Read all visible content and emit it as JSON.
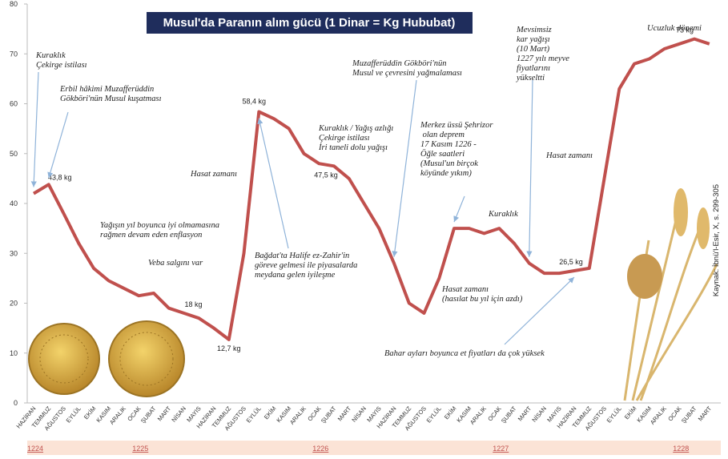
{
  "chart_data": {
    "type": "line",
    "title": "Musul'da Paranın alım gücü (1 Dinar = Kg Hububat)",
    "source": "Kaynak: İbnü'l-Esir, X, s. 299-305",
    "categories": [
      "HAZİRAN",
      "TEMMUZ",
      "AĞUSTOS",
      "EYLÜL",
      "EKİM",
      "KASIM",
      "ARALIK",
      "OCAK",
      "ŞUBAT",
      "MART",
      "NİSAN",
      "MAYIS",
      "HAZİRAN",
      "TEMMUZ",
      "AĞUSTOS",
      "EYLÜL",
      "EKİM",
      "KASIM",
      "ARALIK",
      "OCAK",
      "ŞUBAT",
      "MART",
      "NİSAN",
      "MAYIS",
      "HAZİRAN",
      "TEMMUZ",
      "AĞUSTOS",
      "EYLÜL",
      "EKİM",
      "KASIM",
      "ARALIK",
      "OCAK",
      "ŞUBAT",
      "MART",
      "NİSAN",
      "MAYIS",
      "HAZİRAN",
      "TEMMUZ",
      "AĞUSTOS",
      "EYLÜL",
      "EKİM",
      "KASIM",
      "ARALIK",
      "OCAK",
      "ŞUBAT",
      "MART"
    ],
    "years": [
      "1224",
      null,
      null,
      null,
      null,
      null,
      null,
      "1225",
      null,
      null,
      null,
      null,
      null,
      null,
      null,
      null,
      null,
      null,
      null,
      "1226",
      null,
      null,
      null,
      null,
      null,
      null,
      null,
      null,
      null,
      null,
      null,
      "1227",
      null,
      null,
      null,
      null,
      null,
      null,
      null,
      null,
      null,
      null,
      null,
      "1228",
      null,
      null
    ],
    "values": [
      42,
      43.8,
      38,
      32,
      27,
      24.5,
      23,
      21.5,
      22,
      19,
      18,
      17,
      15,
      12.7,
      30,
      58.4,
      57,
      55,
      50,
      48,
      47.5,
      45,
      40,
      35,
      28,
      20,
      18,
      25,
      35,
      35,
      34,
      35,
      32,
      28,
      26,
      26,
      26.5,
      27,
      45,
      63,
      68,
      69,
      71,
      72,
      73,
      72
    ],
    "value_labels": [
      null,
      "43,8 kg",
      null,
      null,
      null,
      null,
      null,
      null,
      null,
      null,
      "18 kg",
      null,
      null,
      "12,7 kg",
      null,
      "58,4 kg",
      null,
      null,
      null,
      null,
      "47,5 kg",
      null,
      null,
      null,
      null,
      null,
      null,
      null,
      null,
      null,
      null,
      null,
      null,
      null,
      null,
      null,
      "26,5 kg",
      null,
      null,
      null,
      null,
      null,
      null,
      null,
      "73 kg",
      null
    ],
    "color": "#c0504d",
    "ylim": [
      0,
      80
    ],
    "yticks": [
      0,
      10,
      20,
      30,
      40,
      50,
      60,
      70,
      80
    ],
    "grid": false,
    "annotations": [
      [
        "Kuraklık",
        "Çekirge istilası"
      ],
      [
        "Erbil hâkimi Muzafferüddin",
        "Gökböri'nün Musul kuşatması"
      ],
      [
        "Yağışın yıl boyunca iyi olmamasına",
        "rağmen devam eden enflasyon"
      ],
      [
        "Veba salgını var"
      ],
      [
        "Hasat zamanı"
      ],
      [
        "Kuraklık / Yağış azlığı",
        "Çekirge istilası",
        "İri taneli dolu yağışı"
      ],
      [
        "Bağdat'ta Halife ez-Zahir'in",
        "göreve gelmesi ile piyasalarda",
        "meydana gelen iyileşme"
      ],
      [
        "Muzafferüddin Gökböri'nün",
        "Musul ve çevresini yağmalaması"
      ],
      [
        "Merkez üssü Şehrizor",
        " olan deprem",
        "17 Kasım 1226 -",
        "Öğle saatleri",
        "(Musul'un birçok",
        "köyünde yıkım)"
      ],
      [
        "Kuraklık"
      ],
      [
        "Mevsimsiz",
        "kar yağışı",
        "(10 Mart)",
        "1227 yılı meyve",
        "fiyatlarını",
        "yükseltti"
      ],
      [
        "Hasat zamanı"
      ],
      [
        "Hasat zamanı",
        "(hasılat bu yıl için azdı)"
      ],
      [
        "Bahar ayları boyunca et fiyatları da çok yüksek"
      ],
      [
        "Ucuzluk dönemi"
      ]
    ]
  }
}
